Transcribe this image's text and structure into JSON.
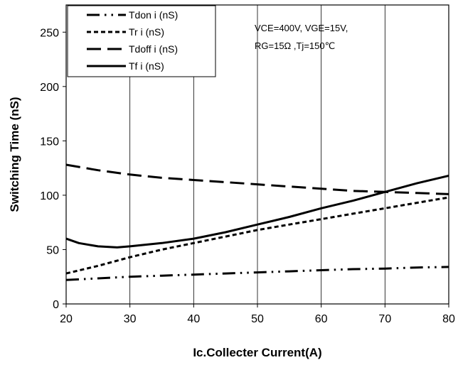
{
  "chart_data": {
    "type": "line",
    "xlabel": "Ic.Collecter Current(A)",
    "ylabel": "Switching Time (nS)",
    "xlim": [
      20,
      80
    ],
    "ylim": [
      0,
      275
    ],
    "xticks": [
      20,
      30,
      40,
      50,
      60,
      70,
      80
    ],
    "yticks": [
      0,
      50,
      100,
      150,
      200,
      250
    ],
    "grid": "vertical",
    "legend_position": "top-left",
    "annotation_lines": [
      "VCE=400V, VGE=15V,",
      "RG=15Ω ,Tj=150℃"
    ],
    "series": [
      {
        "name": "Tdon i (nS)",
        "style": "dash-dot-dot",
        "x": [
          20,
          25,
          30,
          35,
          40,
          45,
          50,
          55,
          60,
          65,
          70,
          75,
          80
        ],
        "y": [
          22,
          23.5,
          25,
          26,
          27,
          28,
          29,
          30,
          31,
          32,
          32.5,
          33.5,
          34
        ]
      },
      {
        "name": "Tr i (nS)",
        "style": "short-dash",
        "x": [
          20,
          25,
          30,
          35,
          40,
          45,
          50,
          55,
          60,
          65,
          70,
          75,
          80
        ],
        "y": [
          28,
          35,
          43,
          50,
          56,
          62,
          68,
          73,
          78,
          83,
          88,
          93,
          98
        ]
      },
      {
        "name": "Tdoff i (nS)",
        "style": "long-dash",
        "x": [
          20,
          25,
          30,
          35,
          40,
          45,
          50,
          55,
          60,
          65,
          70,
          75,
          80
        ],
        "y": [
          128,
          123,
          119,
          116,
          114,
          112,
          110,
          108,
          106,
          104,
          103,
          102,
          101
        ]
      },
      {
        "name": "Tf i (nS)",
        "style": "solid",
        "x": [
          20,
          22,
          25,
          28,
          30,
          35,
          40,
          45,
          50,
          55,
          60,
          65,
          70,
          75,
          80
        ],
        "y": [
          60,
          56,
          53,
          52,
          53,
          56,
          60,
          66,
          73,
          80,
          88,
          95,
          103,
          111,
          118
        ]
      }
    ]
  }
}
